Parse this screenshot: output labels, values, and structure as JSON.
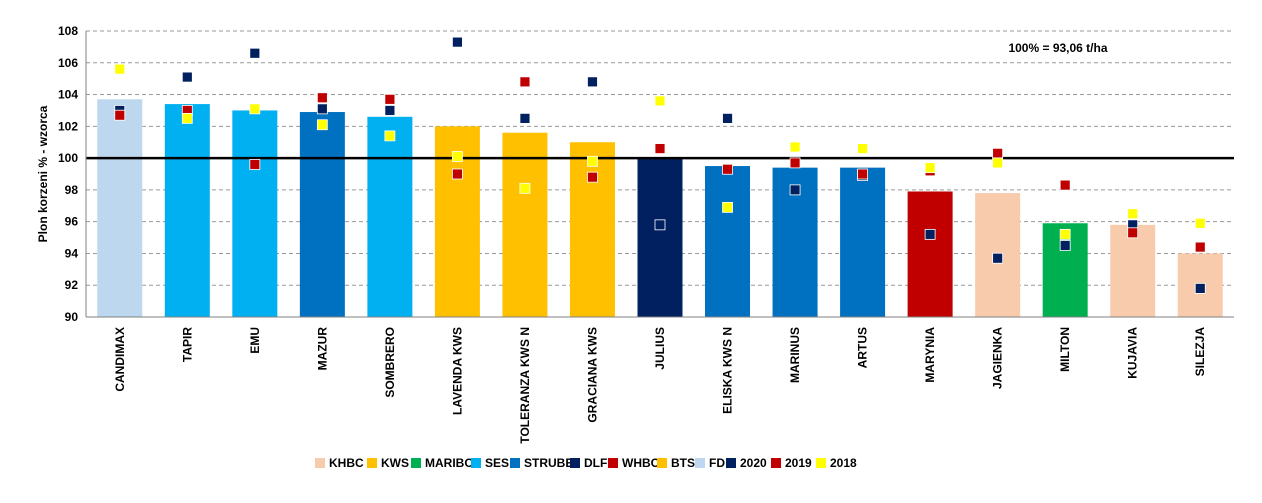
{
  "chart_data": {
    "type": "bar",
    "ylabel": "Plon korzeni % - wzorca",
    "ylim": [
      90,
      108
    ],
    "yticks": [
      90,
      92,
      94,
      96,
      98,
      100,
      102,
      104,
      106,
      108
    ],
    "reference_line": 100,
    "annotation": "100% = 93,06 t/ha",
    "grid": true,
    "legend_position": "bottom",
    "categories": [
      "CANDIMAX",
      "TAPIR",
      "EMU",
      "MAZUR",
      "SOMBRERO",
      "LAVENDA KWS",
      "TOLERANZA KWS N",
      "GRACIANA KWS",
      "JULIUS",
      "ELISKA KWS N",
      "MARINUS",
      "ARTUS",
      "MARYNIA",
      "JAGIENKA",
      "MILTON",
      "KUJAVIA",
      "SILEZJA"
    ],
    "bar_values": [
      103.7,
      103.4,
      103.0,
      102.9,
      102.6,
      102.0,
      101.6,
      101.0,
      100.0,
      99.5,
      99.4,
      99.4,
      97.9,
      97.8,
      95.9,
      95.8,
      94.0
    ],
    "bar_company": [
      "FD",
      "SES",
      "SES",
      "STRUBE",
      "SES",
      "KWS",
      "KWS",
      "KWS",
      "DLF",
      "STRUBE",
      "STRUBE",
      "STRUBE",
      "WHBC",
      "KHBC",
      "MARIBO",
      "KHBC",
      "KHBC"
    ],
    "companies": [
      {
        "name": "KHBC",
        "color": "#f8cbad"
      },
      {
        "name": "KWS",
        "color": "#ffc000"
      },
      {
        "name": "MARIBO",
        "color": "#00b050"
      },
      {
        "name": "SES",
        "color": "#00b0f0"
      },
      {
        "name": "STRUBE",
        "color": "#0070c0"
      },
      {
        "name": "DLF",
        "color": "#002060"
      },
      {
        "name": "WHBC",
        "color": "#c00000"
      },
      {
        "name": "BTS",
        "color": "#ffc000"
      },
      {
        "name": "FD",
        "color": "#bdd7ee"
      }
    ],
    "series": [
      {
        "name": "2020",
        "color": "#002060",
        "values": [
          103.0,
          105.1,
          106.6,
          103.1,
          103.0,
          107.3,
          102.5,
          104.8,
          95.8,
          102.5,
          98.0,
          98.9,
          95.2,
          93.7,
          94.5,
          95.8,
          91.8
        ]
      },
      {
        "name": "2019",
        "color": "#c00000",
        "values": [
          102.7,
          103.0,
          99.6,
          103.8,
          103.7,
          99.0,
          104.8,
          98.8,
          100.6,
          99.3,
          99.7,
          99.0,
          99.2,
          100.3,
          98.3,
          95.3,
          94.4
        ]
      },
      {
        "name": "2018",
        "color": "#ffff00",
        "values": [
          105.6,
          102.5,
          103.1,
          102.1,
          101.4,
          100.1,
          98.1,
          99.8,
          103.6,
          96.9,
          100.7,
          100.6,
          99.4,
          99.7,
          95.2,
          96.5,
          95.9
        ]
      }
    ]
  }
}
